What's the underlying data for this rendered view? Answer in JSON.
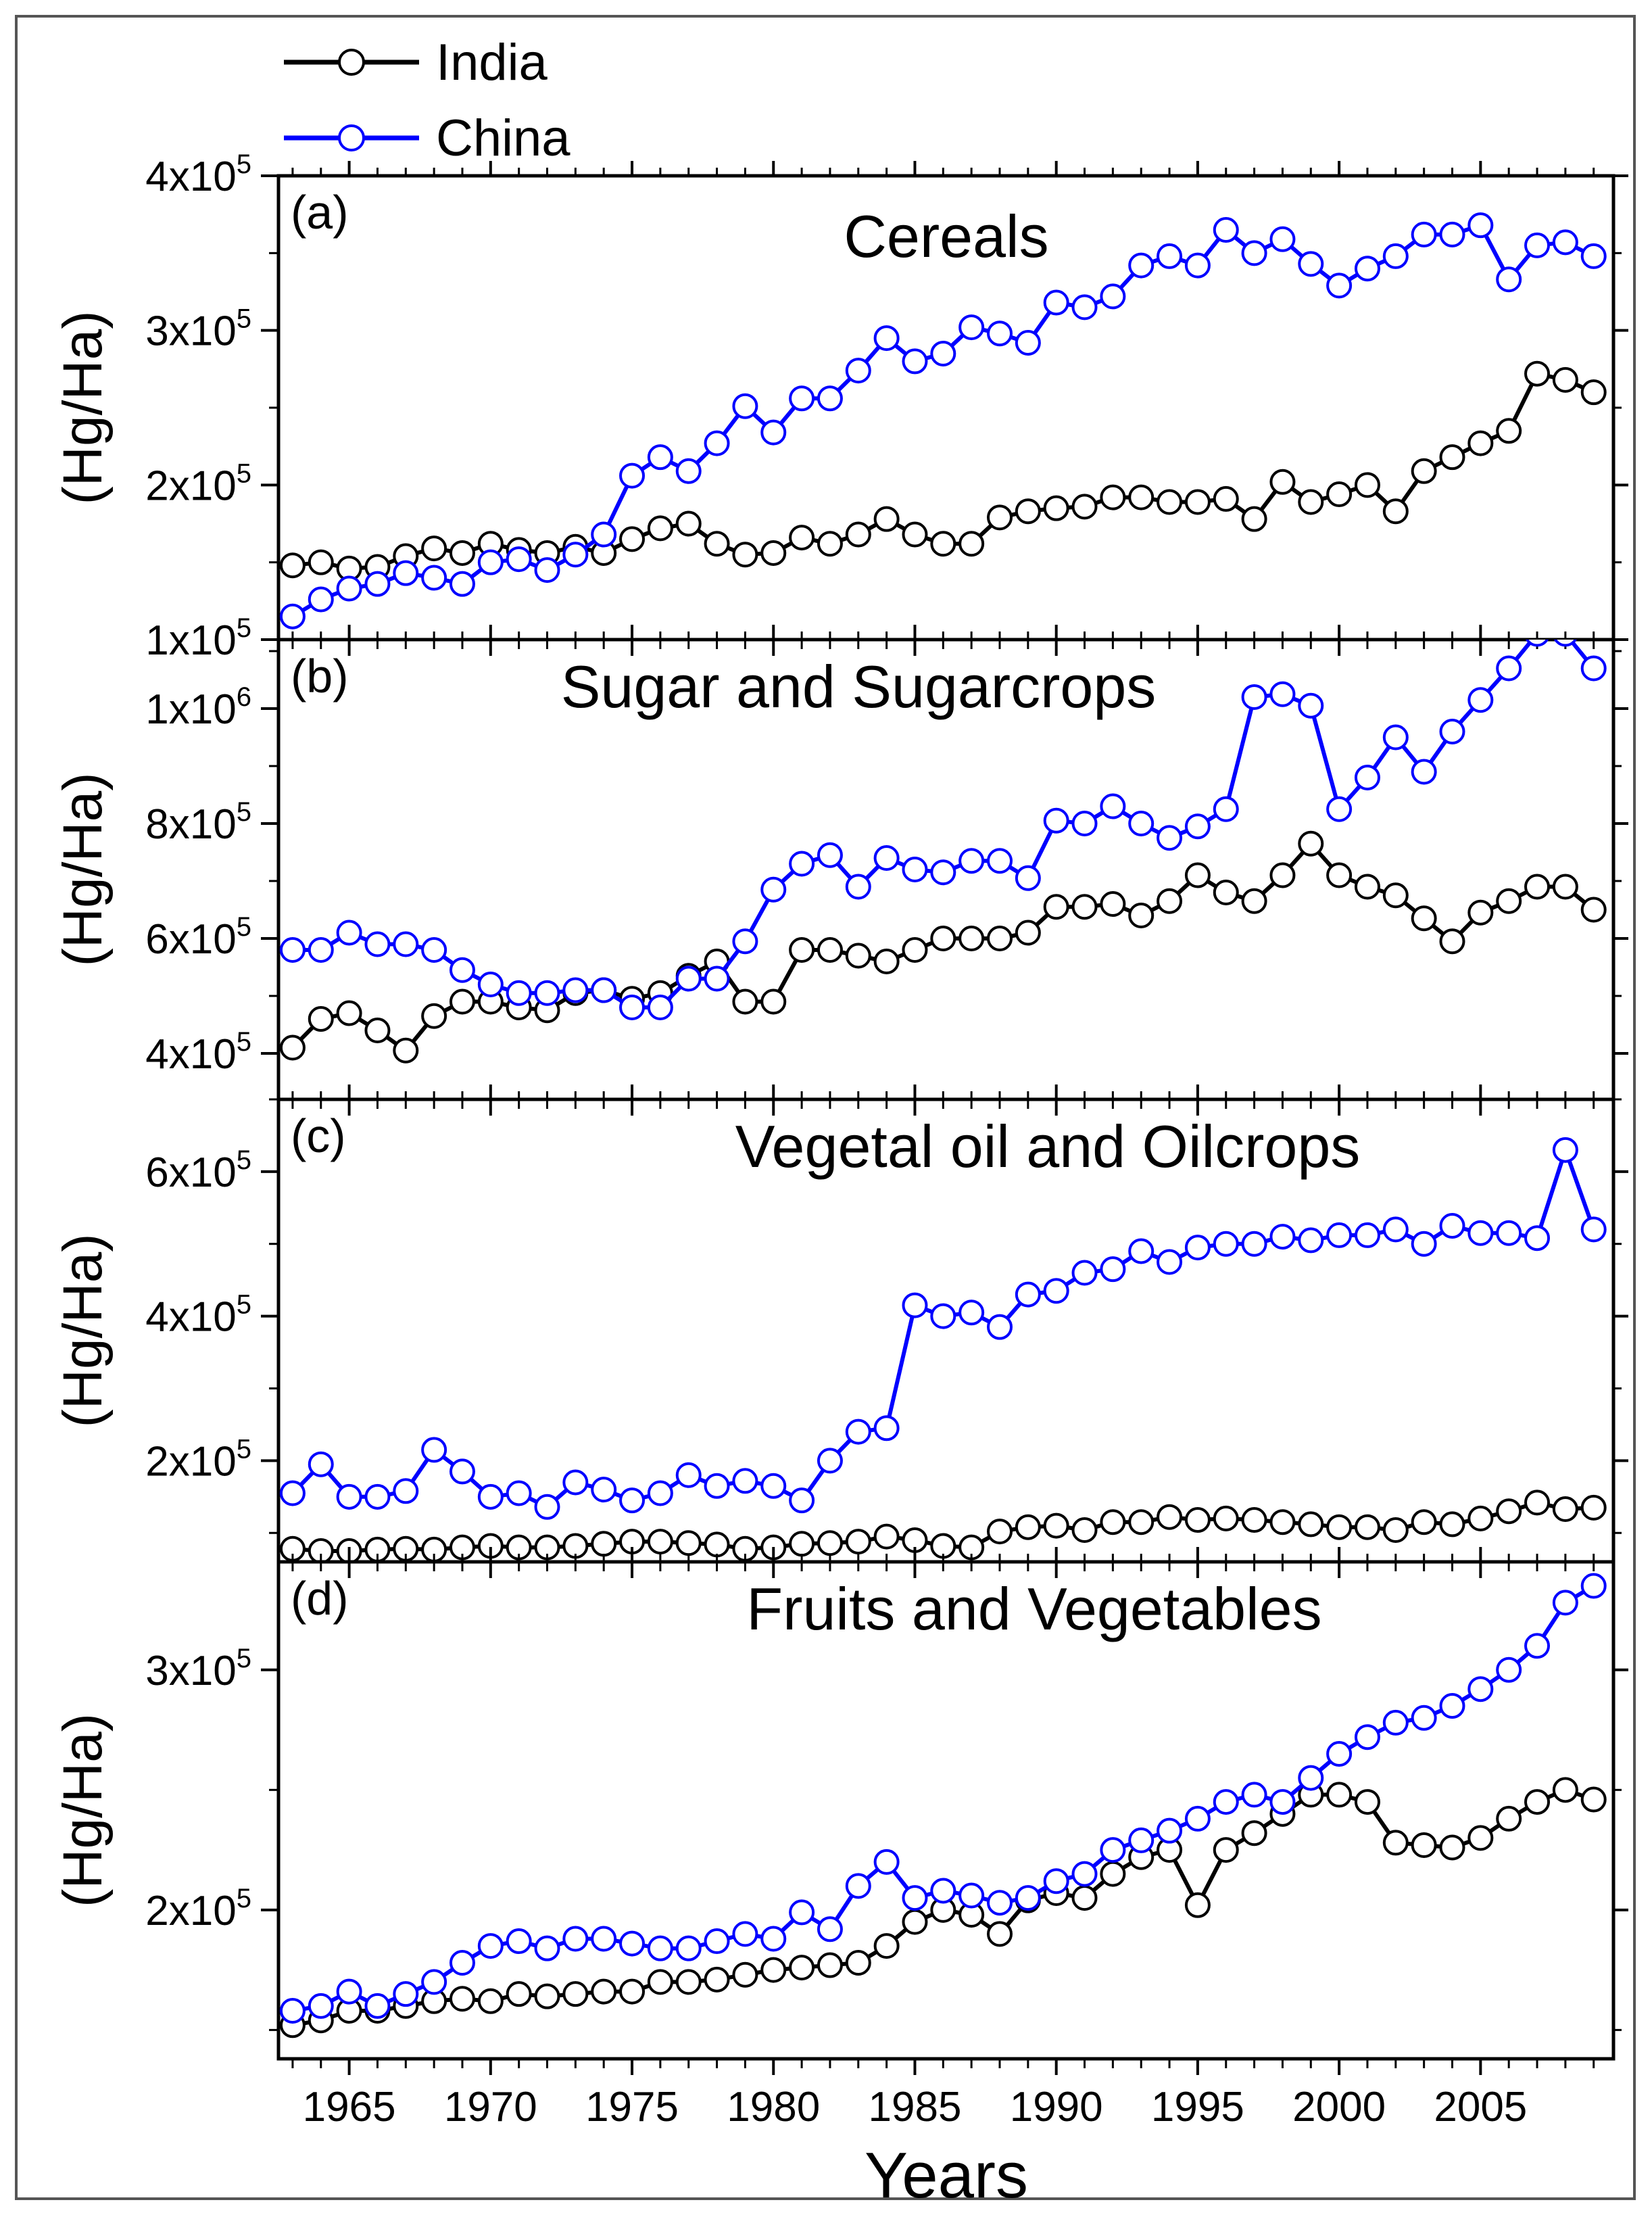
{
  "chart_data": {
    "type": "line",
    "years_x": [
      1963,
      1964,
      1965,
      1966,
      1967,
      1968,
      1969,
      1970,
      1971,
      1972,
      1973,
      1974,
      1975,
      1976,
      1977,
      1978,
      1979,
      1980,
      1981,
      1982,
      1983,
      1984,
      1985,
      1986,
      1987,
      1988,
      1989,
      1990,
      1991,
      1992,
      1993,
      1994,
      1995,
      1996,
      1997,
      1998,
      1999,
      2000,
      2001,
      2002,
      2003,
      2004,
      2005,
      2006,
      2007,
      2008,
      2009
    ],
    "xlabel": "Years",
    "xlim": [
      1962.5,
      2009.7
    ],
    "x_ticks": [
      1965,
      1970,
      1975,
      1980,
      1985,
      1990,
      1995,
      2000,
      2005
    ],
    "legend": [
      {
        "name": "India",
        "color": "#000000"
      },
      {
        "name": "China",
        "color": "#0000ff"
      }
    ],
    "panels": [
      {
        "tag": "(a)",
        "title": "Cereals",
        "ylabel": "(Hg/Ha)",
        "ylim": [
          100000,
          400000
        ],
        "y_ticks": [
          {
            "v": 100000,
            "m": "1x10",
            "e": "5"
          },
          {
            "v": 200000,
            "m": "2x10",
            "e": "5"
          },
          {
            "v": 300000,
            "m": "3x10",
            "e": "5"
          },
          {
            "v": 400000,
            "m": "4x10",
            "e": "5"
          }
        ],
        "series": [
          {
            "name": "India",
            "values": [
              148000,
              150000,
              146000,
              147000,
              154000,
              159000,
              156000,
              162000,
              158000,
              156000,
              160000,
              156000,
              165000,
              172000,
              175000,
              162000,
              155000,
              156000,
              166000,
              162000,
              168000,
              178000,
              168000,
              162000,
              162000,
              179000,
              183000,
              185000,
              186000,
              192000,
              192000,
              189000,
              189000,
              191000,
              178000,
              202000,
              189000,
              194000,
              200000,
              183000,
              209000,
              218000,
              227000,
              235000,
              272000,
              268000,
              260000
            ]
          },
          {
            "name": "China",
            "values": [
              115000,
              126000,
              133000,
              136000,
              143000,
              140000,
              136000,
              150000,
              152000,
              145000,
              155000,
              168000,
              206000,
              218000,
              209000,
              227000,
              251000,
              234000,
              256000,
              256000,
              274000,
              295000,
              280000,
              285000,
              302000,
              298000,
              292000,
              318000,
              315000,
              322000,
              342000,
              348000,
              342000,
              365000,
              350000,
              359000,
              343000,
              329000,
              340000,
              348000,
              362000,
              362000,
              368000,
              333000,
              355000,
              357000,
              348000
            ]
          }
        ]
      },
      {
        "tag": "(b)",
        "title": "Sugar and Sugarcrops",
        "ylabel": "(Hg/Ha)",
        "ylim": [
          320000,
          1120000
        ],
        "y_ticks": [
          {
            "v": 400000,
            "m": "4x10",
            "e": "5"
          },
          {
            "v": 600000,
            "m": "6x10",
            "e": "5"
          },
          {
            "v": 800000,
            "m": "8x10",
            "e": "5"
          },
          {
            "v": 1000000,
            "m": "1x10",
            "e": "6"
          }
        ],
        "series": [
          {
            "name": "India",
            "values": [
              410000,
              460000,
              470000,
              440000,
              405000,
              465000,
              490000,
              490000,
              480000,
              475000,
              505000,
              510000,
              495000,
              505000,
              535000,
              560000,
              490000,
              490000,
              580000,
              580000,
              570000,
              560000,
              580000,
              600000,
              600000,
              600000,
              610000,
              655000,
              655000,
              660000,
              640000,
              665000,
              710000,
              680000,
              665000,
              710000,
              765000,
              710000,
              690000,
              675000,
              635000,
              595000,
              645000,
              665000,
              690000,
              690000,
              650000
            ]
          },
          {
            "name": "China",
            "values": [
              580000,
              580000,
              610000,
              590000,
              590000,
              580000,
              545000,
              520000,
              505000,
              505000,
              510000,
              510000,
              480000,
              480000,
              530000,
              530000,
              595000,
              685000,
              730000,
              745000,
              690000,
              740000,
              720000,
              715000,
              735000,
              735000,
              705000,
              805000,
              800000,
              830000,
              800000,
              775000,
              795000,
              825000,
              1020000,
              1025000,
              1005000,
              825000,
              880000,
              950000,
              890000,
              960000,
              1015000,
              1070000,
              1130000,
              1130000,
              1070000
            ]
          }
        ]
      },
      {
        "tag": "(c)",
        "title": "Vegetal oil and Oilcrops",
        "ylabel": "(Hg/Ha)",
        "ylim": [
          60000,
          700000
        ],
        "y_ticks": [
          {
            "v": 200000,
            "m": "2x10",
            "e": "5"
          },
          {
            "v": 400000,
            "m": "4x10",
            "e": "5"
          },
          {
            "v": 600000,
            "m": "6x10",
            "e": "5"
          }
        ],
        "series": [
          {
            "name": "India",
            "values": [
              78000,
              75000,
              75000,
              77000,
              78000,
              77000,
              80000,
              82000,
              80000,
              80000,
              82000,
              85000,
              88000,
              88000,
              86000,
              84000,
              78000,
              80000,
              85000,
              86000,
              88000,
              95000,
              90000,
              82000,
              80000,
              102000,
              108000,
              110000,
              104000,
              115000,
              115000,
              122000,
              118000,
              120000,
              118000,
              115000,
              112000,
              108000,
              108000,
              104000,
              115000,
              112000,
              120000,
              130000,
              142000,
              133000,
              135000
            ]
          },
          {
            "name": "China",
            "values": [
              155000,
              195000,
              150000,
              150000,
              158000,
              215000,
              185000,
              150000,
              155000,
              136000,
              170000,
              160000,
              145000,
              155000,
              180000,
              165000,
              172000,
              165000,
              145000,
              200000,
              240000,
              245000,
              415000,
              400000,
              405000,
              385000,
              430000,
              435000,
              460000,
              465000,
              490000,
              475000,
              495000,
              500000,
              500000,
              510000,
              505000,
              512000,
              512000,
              520000,
              500000,
              525000,
              515000,
              515000,
              508000,
              630000,
              520000
            ]
          }
        ]
      },
      {
        "tag": "(d)",
        "title": "Fruits and Vegetables",
        "ylabel": "(Hg/Ha)",
        "ylim": [
          138000,
          345000
        ],
        "y_ticks": [
          {
            "v": 200000,
            "m": "2x10",
            "e": "5"
          },
          {
            "v": 300000,
            "m": "3x10",
            "e": "5"
          }
        ],
        "series": [
          {
            "name": "India",
            "values": [
              152000,
              154000,
              158000,
              158000,
              160000,
              162000,
              163000,
              162000,
              165000,
              164000,
              165000,
              166000,
              166000,
              170000,
              170000,
              171000,
              173000,
              175000,
              176000,
              177000,
              178000,
              185000,
              195000,
              200000,
              198000,
              190000,
              204000,
              207000,
              205000,
              215000,
              222000,
              225000,
              202000,
              225000,
              232000,
              240000,
              248000,
              248000,
              245000,
              228000,
              227000,
              226000,
              230000,
              238000,
              245000,
              250000,
              246000
            ]
          },
          {
            "name": "China",
            "values": [
              158000,
              160000,
              166000,
              160000,
              165000,
              170000,
              178000,
              185000,
              187000,
              184000,
              188000,
              188000,
              186000,
              184000,
              184000,
              187000,
              190000,
              188000,
              199000,
              192000,
              210000,
              220000,
              205000,
              208000,
              206000,
              203000,
              205000,
              212000,
              215000,
              225000,
              229000,
              233000,
              238000,
              245000,
              248000,
              245000,
              255000,
              265000,
              272000,
              278000,
              280000,
              285000,
              292000,
              300000,
              310000,
              328000,
              335000
            ]
          }
        ]
      }
    ]
  }
}
